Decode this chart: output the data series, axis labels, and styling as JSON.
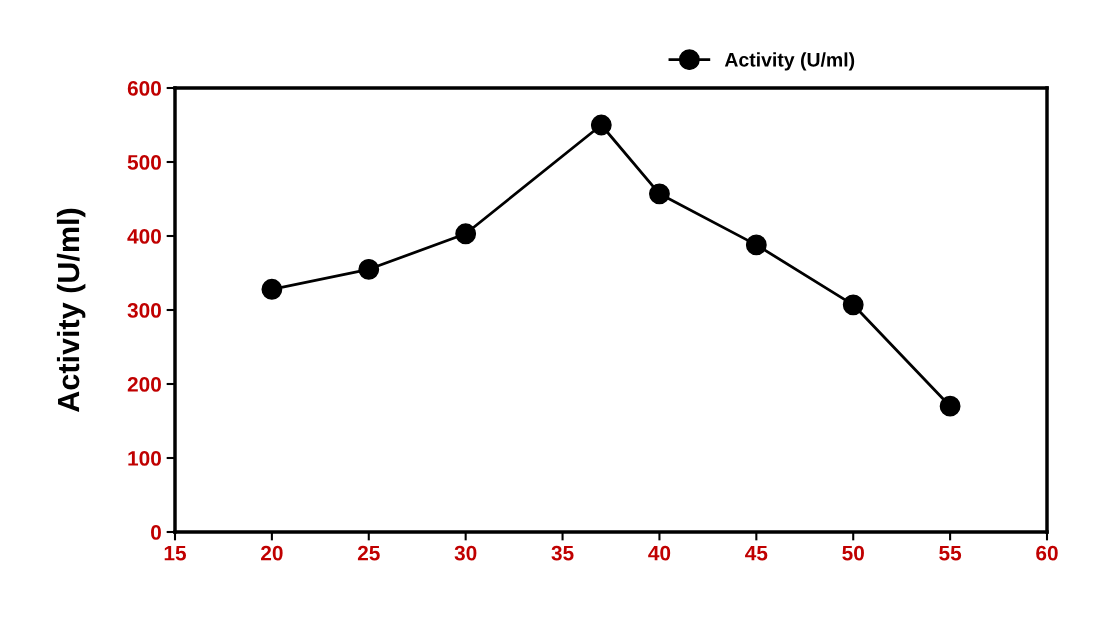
{
  "chart_data": {
    "type": "line",
    "ylabel": "Activity (U/ml)",
    "x": [
      20,
      25,
      30,
      37,
      40,
      45,
      50,
      55
    ],
    "series": [
      {
        "name": "Activity (U/ml)",
        "color": "#000000",
        "values": [
          328,
          355,
          403,
          550,
          457,
          388,
          307,
          170
        ]
      }
    ],
    "xlim": [
      15,
      60
    ],
    "xticks": [
      15,
      20,
      25,
      30,
      35,
      40,
      45,
      50,
      55,
      60
    ],
    "ylim": [
      0,
      600
    ],
    "yticks": [
      0,
      100,
      200,
      300,
      400,
      500,
      600
    ],
    "grid": false,
    "legend": "top right",
    "marker": "circle",
    "line_style": "solid"
  }
}
